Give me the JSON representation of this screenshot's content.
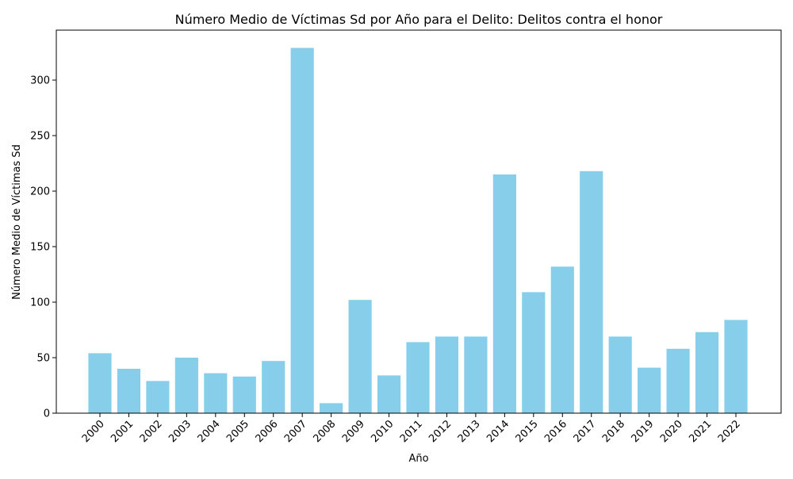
{
  "chart_data": {
    "type": "bar",
    "title": "Número Medio de Víctimas Sd por Año para el Delito: Delitos contra el honor",
    "xlabel": "Año",
    "ylabel": "Número Medio de Víctimas Sd",
    "categories": [
      "2000",
      "2001",
      "2002",
      "2003",
      "2004",
      "2005",
      "2006",
      "2007",
      "2008",
      "2009",
      "2010",
      "2011",
      "2012",
      "2013",
      "2014",
      "2015",
      "2016",
      "2017",
      "2018",
      "2019",
      "2020",
      "2021",
      "2022"
    ],
    "values": [
      54,
      40,
      29,
      50,
      36,
      33,
      47,
      329,
      9,
      102,
      34,
      64,
      69,
      69,
      215,
      109,
      132,
      218,
      69,
      41,
      58,
      73,
      84
    ],
    "ylim": [
      0,
      345
    ],
    "yticks": [
      0,
      50,
      100,
      150,
      200,
      250,
      300
    ],
    "bar_color": "#87ceeb",
    "grid": false
  }
}
